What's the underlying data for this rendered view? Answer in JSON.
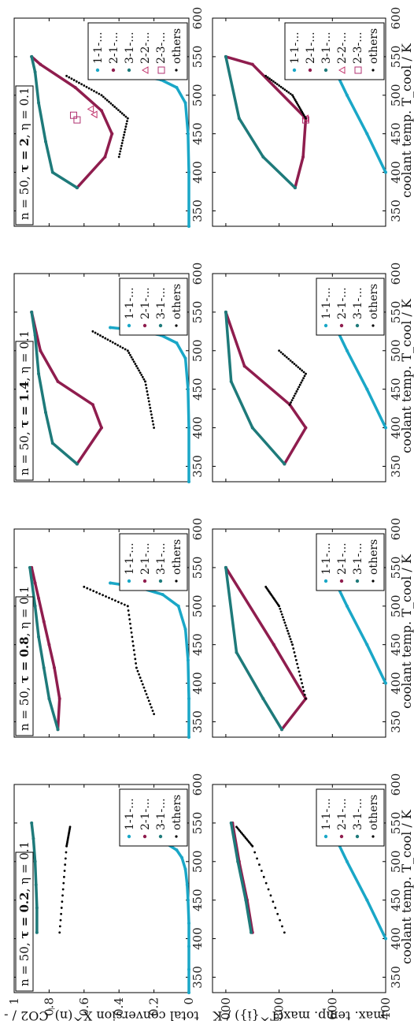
{
  "figure": {
    "ylabel_top": "total conversion X^(n)_CO2 / -",
    "ylabel_bottom": "max. temp. max(T^{i}) / K",
    "xlabel": "coolant temp. T_cool / K"
  },
  "colors": {
    "s11": "#1aa7c7",
    "s21": "#8f1d4e",
    "s31": "#1e7a7a",
    "s22": "#c0306a",
    "s23": "#b03070",
    "others": "#000000",
    "frame": "#000000"
  },
  "chart_data": [
    {
      "type": "scatter",
      "panel": "conversion",
      "title_parts": {
        "pre": "n = 50, ",
        "tau": "τ = 0.2",
        "post": ", η = 0.1"
      },
      "xlabel": "coolant temp. T_cool / K",
      "ylabel": "total conversion X^(n)_CO2 / -",
      "xlim": [
        330,
        600
      ],
      "ylim": [
        0,
        1
      ],
      "xticks": [
        350,
        400,
        450,
        500,
        550,
        600
      ],
      "yticks": [
        0,
        0.2,
        0.4,
        0.6,
        0.8,
        1
      ],
      "legend": [
        "1-1-...",
        "2-1-...",
        "3-1-...",
        "others"
      ],
      "legend_position": "bottom-right",
      "series": [
        {
          "name": "1-1-...",
          "x": [
            330,
            360,
            390,
            420,
            450,
            470,
            490,
            505,
            515,
            522,
            527,
            530
          ],
          "y": [
            0,
            0,
            0,
            0,
            0.005,
            0.01,
            0.02,
            0.04,
            0.07,
            0.12,
            0.22,
            0.3
          ]
        },
        {
          "name": "2-1-...",
          "x": [],
          "y": []
        },
        {
          "name": "3-1-...",
          "x": [
            408,
            440,
            470,
            500,
            530,
            550
          ],
          "y": [
            0.87,
            0.87,
            0.875,
            0.88,
            0.89,
            0.9
          ]
        },
        {
          "name": "others",
          "x": [
            408,
            520,
            545
          ],
          "y": [
            0.74,
            0.7,
            0.68
          ]
        }
      ]
    },
    {
      "type": "scatter",
      "panel": "max-temperature",
      "xlabel": "coolant temp. T_cool / K",
      "ylabel": "max. temp. max(T^{i}) / K",
      "xlim": [
        330,
        600
      ],
      "ylim": [
        400,
        1050
      ],
      "xticks": [
        350,
        400,
        450,
        500,
        550,
        600
      ],
      "yticks": [
        400,
        600,
        800,
        1000
      ],
      "legend": [
        "1-1-...",
        "2-1-...",
        "3-1-...",
        "others"
      ],
      "legend_position": "bottom-right",
      "series": [
        {
          "name": "1-1-...",
          "x": [
            400,
            450,
            500,
            525,
            530
          ],
          "y": [
            400,
            470,
            545,
            580,
            590
          ]
        },
        {
          "name": "2-1-...",
          "x": [
            408,
            450,
            500,
            550
          ],
          "y": [
            900,
            920,
            950,
            975
          ]
        },
        {
          "name": "3-1-...",
          "x": [
            408,
            450,
            500,
            550
          ],
          "y": [
            905,
            925,
            955,
            980
          ]
        },
        {
          "name": "others",
          "x": [
            408,
            520,
            545
          ],
          "y": [
            780,
            900,
            960
          ]
        }
      ]
    },
    {
      "type": "scatter",
      "panel": "conversion",
      "title_parts": {
        "pre": "n = 50, ",
        "tau": "τ = 0.8",
        "post": ", η = 0.1"
      },
      "xlabel": "coolant temp. T_cool / K",
      "ylabel": "total conversion X^(n)_CO2 / -",
      "xlim": [
        330,
        600
      ],
      "ylim": [
        0,
        1
      ],
      "xticks": [
        350,
        400,
        450,
        500,
        550,
        600
      ],
      "yticks": [
        0,
        0.2,
        0.4,
        0.6,
        0.8,
        1
      ],
      "legend": [
        "1-1-...",
        "2-1-...",
        "3-1-...",
        "others"
      ],
      "legend_position": "bottom-right",
      "series": [
        {
          "name": "1-1-...",
          "x": [
            330,
            380,
            430,
            470,
            500,
            515,
            525,
            530
          ],
          "y": [
            0,
            0,
            0.005,
            0.02,
            0.06,
            0.15,
            0.3,
            0.45
          ]
        },
        {
          "name": "2-1-...",
          "x": [
            340,
            380,
            420,
            450,
            480,
            510,
            530,
            550
          ],
          "y": [
            0.75,
            0.74,
            0.77,
            0.8,
            0.83,
            0.86,
            0.88,
            0.9
          ]
        },
        {
          "name": "3-1-...",
          "x": [
            340,
            380,
            420,
            460,
            500,
            550
          ],
          "y": [
            0.75,
            0.8,
            0.83,
            0.86,
            0.88,
            0.91
          ]
        },
        {
          "name": "others",
          "x": [
            360,
            420,
            500,
            525
          ],
          "y": [
            0.2,
            0.3,
            0.35,
            0.6
          ]
        }
      ]
    },
    {
      "type": "scatter",
      "panel": "max-temperature",
      "xlabel": "coolant temp. T_cool / K",
      "ylabel": "max. temp. max(T^{i}) / K",
      "xlim": [
        330,
        600
      ],
      "ylim": [
        400,
        1050
      ],
      "xticks": [
        350,
        400,
        450,
        500,
        550,
        600
      ],
      "yticks": [
        400,
        600,
        800,
        1000
      ],
      "legend": [
        "1-1-...",
        "2-1-...",
        "3-1-...",
        "others"
      ],
      "legend_position": "bottom-right",
      "series": [
        {
          "name": "1-1-...",
          "x": [
            400,
            450,
            500,
            525,
            530
          ],
          "y": [
            400,
            470,
            545,
            580,
            590
          ]
        },
        {
          "name": "2-1-...",
          "x": [
            340,
            380,
            450,
            550
          ],
          "y": [
            790,
            700,
            820,
            1000
          ]
        },
        {
          "name": "3-1-...",
          "x": [
            340,
            380,
            440,
            550
          ],
          "y": [
            790,
            860,
            960,
            1000
          ]
        },
        {
          "name": "others",
          "x": [
            380,
            450,
            500,
            525
          ],
          "y": [
            700,
            750,
            800,
            850
          ]
        }
      ]
    },
    {
      "type": "scatter",
      "panel": "conversion",
      "title_parts": {
        "pre": "n = 50, ",
        "tau": "τ = 1.4",
        "post": ", η = 0.1"
      },
      "xlabel": "coolant temp. T_cool / K",
      "ylabel": "total conversion X^(n)_CO2 / -",
      "xlim": [
        330,
        600
      ],
      "ylim": [
        0,
        1
      ],
      "xticks": [
        350,
        400,
        450,
        500,
        550,
        600
      ],
      "yticks": [
        0,
        0.2,
        0.4,
        0.6,
        0.8,
        1
      ],
      "legend": [
        "1-1-...",
        "2-1-...",
        "3-1-...",
        "others"
      ],
      "legend_position": "bottom-right",
      "series": [
        {
          "name": "1-1-...",
          "x": [
            330,
            400,
            450,
            490,
            510,
            520,
            527,
            530
          ],
          "y": [
            0,
            0,
            0.005,
            0.02,
            0.07,
            0.16,
            0.32,
            0.45
          ]
        },
        {
          "name": "2-1-...",
          "x": [
            353,
            400,
            430,
            460,
            500,
            550
          ],
          "y": [
            0.64,
            0.5,
            0.55,
            0.75,
            0.85,
            0.9
          ]
        },
        {
          "name": "3-1-...",
          "x": [
            353,
            380,
            420,
            470,
            520,
            550
          ],
          "y": [
            0.64,
            0.78,
            0.82,
            0.86,
            0.88,
            0.9
          ]
        },
        {
          "name": "others",
          "x": [
            400,
            460,
            500,
            525
          ],
          "y": [
            0.2,
            0.25,
            0.35,
            0.55
          ]
        }
      ]
    },
    {
      "type": "scatter",
      "panel": "max-temperature",
      "xlabel": "coolant temp. T_cool / K",
      "ylabel": "max. temp. max(T^{i}) / K",
      "xlim": [
        330,
        600
      ],
      "ylim": [
        400,
        1050
      ],
      "xticks": [
        350,
        400,
        450,
        500,
        550,
        600
      ],
      "yticks": [
        400,
        600,
        800,
        1000
      ],
      "legend": [
        "1-1-...",
        "2-1-...",
        "3-1-...",
        "others"
      ],
      "legend_position": "bottom-right",
      "series": [
        {
          "name": "1-1-...",
          "x": [
            400,
            450,
            500,
            525,
            530
          ],
          "y": [
            400,
            470,
            545,
            580,
            590
          ]
        },
        {
          "name": "2-1-...",
          "x": [
            353,
            400,
            430,
            480,
            550
          ],
          "y": [
            780,
            700,
            760,
            930,
            1000
          ]
        },
        {
          "name": "3-1-...",
          "x": [
            353,
            400,
            460,
            550
          ],
          "y": [
            780,
            900,
            980,
            1000
          ]
        },
        {
          "name": "others",
          "x": [
            430,
            470,
            500
          ],
          "y": [
            760,
            700,
            800
          ]
        }
      ]
    },
    {
      "type": "scatter",
      "panel": "conversion",
      "title_parts": {
        "pre": "n = 50, ",
        "tau": "τ = 2",
        "post": ", η = 0.1"
      },
      "xlabel": "coolant temp. T_cool / K",
      "ylabel": "total conversion X^(n)_CO2 / -",
      "xlim": [
        330,
        600
      ],
      "ylim": [
        0,
        1
      ],
      "xticks": [
        350,
        400,
        450,
        500,
        550,
        600
      ],
      "yticks": [
        0,
        0.2,
        0.4,
        0.6,
        0.8,
        1
      ],
      "legend": [
        "1-1-...",
        "2-1-...",
        "3-1-...",
        "2-2-...",
        "2-3-...",
        "others"
      ],
      "legend_position": "bottom-right",
      "series": [
        {
          "name": "1-1-...",
          "x": [
            330,
            400,
            450,
            490,
            510,
            520,
            527,
            530
          ],
          "y": [
            0,
            0,
            0.005,
            0.02,
            0.07,
            0.16,
            0.32,
            0.45
          ]
        },
        {
          "name": "2-1-...",
          "x": [
            380,
            420,
            450,
            480,
            510,
            540,
            550
          ],
          "y": [
            0.64,
            0.48,
            0.44,
            0.5,
            0.65,
            0.85,
            0.9
          ]
        },
        {
          "name": "3-1-...",
          "x": [
            380,
            400,
            440,
            490,
            530,
            550
          ],
          "y": [
            0.64,
            0.78,
            0.82,
            0.86,
            0.88,
            0.9
          ]
        },
        {
          "name": "2-2-...",
          "x": [
            475,
            482
          ],
          "y": [
            0.54,
            0.56
          ]
        },
        {
          "name": "2-3-...",
          "x": [
            468,
            474
          ],
          "y": [
            0.64,
            0.66
          ]
        },
        {
          "name": "others",
          "x": [
            420,
            470,
            500,
            525
          ],
          "y": [
            0.4,
            0.35,
            0.5,
            0.7
          ]
        }
      ]
    },
    {
      "type": "scatter",
      "panel": "max-temperature",
      "xlabel": "coolant temp. T_cool / K",
      "ylabel": "max. temp. max(T^{i}) / K",
      "xlim": [
        330,
        600
      ],
      "ylim": [
        400,
        1050
      ],
      "xticks": [
        350,
        400,
        450,
        500,
        550,
        600
      ],
      "yticks": [
        400,
        600,
        800,
        1000
      ],
      "legend": [
        "1-1-...",
        "2-1-...",
        "3-1-...",
        "2-2-...",
        "2-3-...",
        "others"
      ],
      "legend_position": "bottom-right",
      "series": [
        {
          "name": "1-1-...",
          "x": [
            400,
            450,
            500,
            525,
            530
          ],
          "y": [
            400,
            470,
            545,
            580,
            590
          ]
        },
        {
          "name": "2-1-...",
          "x": [
            380,
            420,
            470,
            540,
            550
          ],
          "y": [
            740,
            710,
            700,
            900,
            1000
          ]
        },
        {
          "name": "3-1-...",
          "x": [
            380,
            420,
            470,
            550
          ],
          "y": [
            740,
            860,
            950,
            1000
          ]
        },
        {
          "name": "2-2-...",
          "x": [
            470
          ],
          "y": [
            700
          ]
        },
        {
          "name": "2-3-...",
          "x": [
            468
          ],
          "y": [
            700
          ]
        },
        {
          "name": "others",
          "x": [
            470,
            500,
            525
          ],
          "y": [
            700,
            750,
            850
          ]
        }
      ]
    }
  ]
}
